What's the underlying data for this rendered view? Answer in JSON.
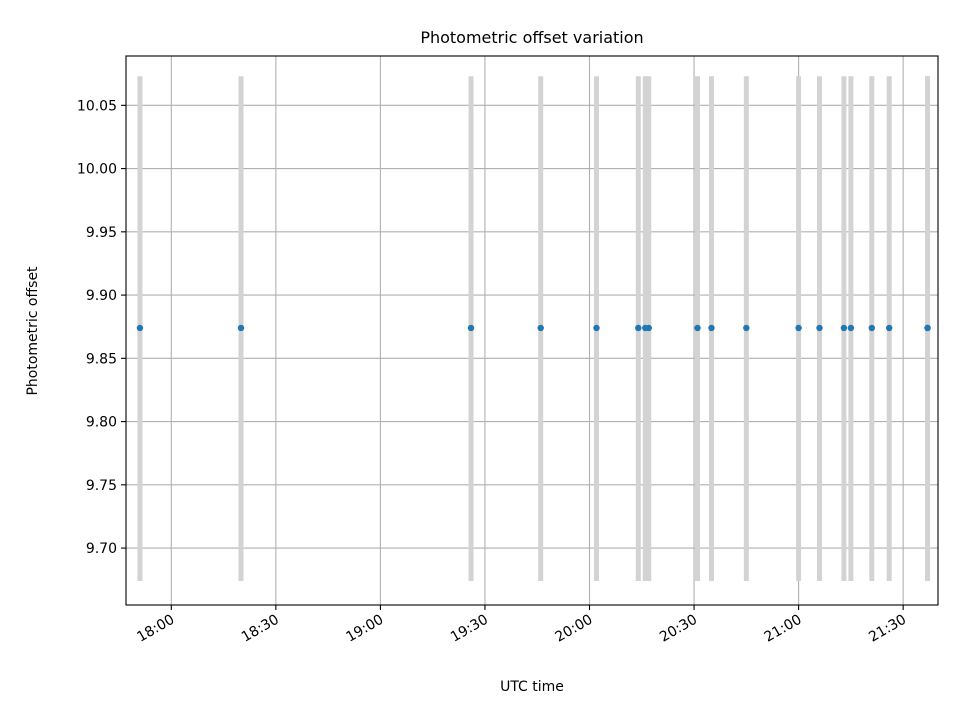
{
  "chart_data": {
    "type": "scatter",
    "title": "Photometric offset variation",
    "xlabel": "UTC time",
    "ylabel": "Photometric offset",
    "x_ticks": [
      "18:00",
      "18:30",
      "19:00",
      "19:30",
      "20:00",
      "20:30",
      "21:00",
      "21:30"
    ],
    "y_ticks": [
      "9.70",
      "9.75",
      "9.80",
      "9.85",
      "9.90",
      "9.95",
      "10.00",
      "10.05"
    ],
    "ylim": [
      9.655,
      10.089
    ],
    "xlim": [
      "17:47",
      "21:40"
    ],
    "grid": true,
    "point_color": "#1f77b4",
    "errorbar_color": "#d3d3d3",
    "error_low": 9.674,
    "error_high": 10.073,
    "series": [
      {
        "x": [
          "17:51",
          "18:20",
          "19:26",
          "19:46",
          "20:02",
          "20:14",
          "20:16",
          "20:17",
          "20:31",
          "20:35",
          "20:45",
          "21:00",
          "21:06",
          "21:13",
          "21:15",
          "21:21",
          "21:26",
          "21:37",
          "21:37"
        ],
        "y": [
          9.874,
          9.874,
          9.874,
          9.874,
          9.874,
          9.874,
          9.874,
          9.874,
          9.874,
          9.874,
          9.874,
          9.874,
          9.874,
          9.874,
          9.874,
          9.874,
          9.874,
          9.874,
          9.874
        ]
      }
    ]
  }
}
